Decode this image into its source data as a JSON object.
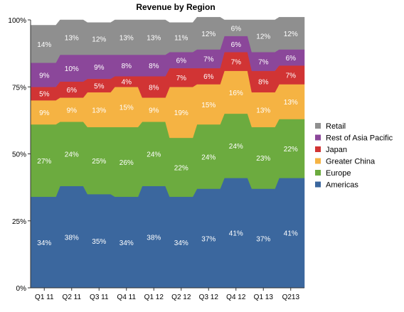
{
  "chart_data": {
    "type": "area",
    "stacked": true,
    "title": "Revenue by Region",
    "xlabel": "",
    "ylabel": "",
    "ylim": [
      0,
      100
    ],
    "yticks": [
      "0%",
      "25%",
      "50%",
      "75%",
      "100%"
    ],
    "grid": false,
    "legend_position": "right",
    "categories": [
      "Q1 11",
      "Q2 11",
      "Q3 11",
      "Q4 11",
      "Q1 12",
      "Q2 12",
      "Q3 12",
      "Q4 12",
      "Q1 13",
      "Q213"
    ],
    "series": [
      {
        "name": "Americas",
        "color": "#3b679e",
        "values": [
          34,
          38,
          35,
          34,
          38,
          34,
          37,
          41,
          37,
          41
        ]
      },
      {
        "name": "Europe",
        "color": "#6cab3f",
        "values": [
          27,
          24,
          25,
          26,
          24,
          22,
          24,
          24,
          23,
          22
        ]
      },
      {
        "name": "Greater China",
        "color": "#f5b343",
        "values": [
          9,
          9,
          13,
          15,
          9,
          19,
          15,
          16,
          13,
          13
        ]
      },
      {
        "name": "Japan",
        "color": "#d13434",
        "values": [
          5,
          6,
          5,
          4,
          8,
          7,
          6,
          7,
          8,
          7
        ]
      },
      {
        "name": "Rest of Asia Pacific",
        "color": "#8b479a",
        "values": [
          9,
          10,
          9,
          8,
          8,
          6,
          7,
          6,
          7,
          6
        ]
      },
      {
        "name": "Retail",
        "color": "#8f8f8f",
        "values": [
          14,
          13,
          12,
          13,
          13,
          11,
          12,
          6,
          12,
          12
        ]
      }
    ],
    "data_labels": {
      "Americas": [
        "34%",
        "38%",
        "35%",
        "34%",
        "38%",
        "34%",
        "37%",
        "41%",
        "37%",
        "41%"
      ],
      "Europe": [
        "27%",
        "24%",
        "25%",
        "26%",
        "24%",
        "22%",
        "24%",
        "24%",
        "23%",
        "22%"
      ],
      "Greater China": [
        "9%",
        "9%",
        "13%",
        "15%",
        "9%",
        "19%",
        "15%",
        "16%",
        "13%",
        "13%"
      ],
      "Japan": [
        "5%",
        "6%",
        "5%",
        "4%",
        "8%",
        "7%",
        "6%",
        "7%",
        "8%",
        "7%"
      ],
      "Rest of Asia Pacific": [
        "9%",
        "10%",
        "9%",
        "8%",
        "8%",
        "6%",
        "7%",
        "6%",
        "7%",
        "6%"
      ],
      "Retail": [
        "14%",
        "13%",
        "12%",
        "13%",
        "13%",
        "11%",
        "12%",
        "6%",
        "12%",
        "12%"
      ]
    },
    "legend_order": [
      "Retail",
      "Rest of Asia Pacific",
      "Japan",
      "Greater China",
      "Europe",
      "Americas"
    ]
  }
}
